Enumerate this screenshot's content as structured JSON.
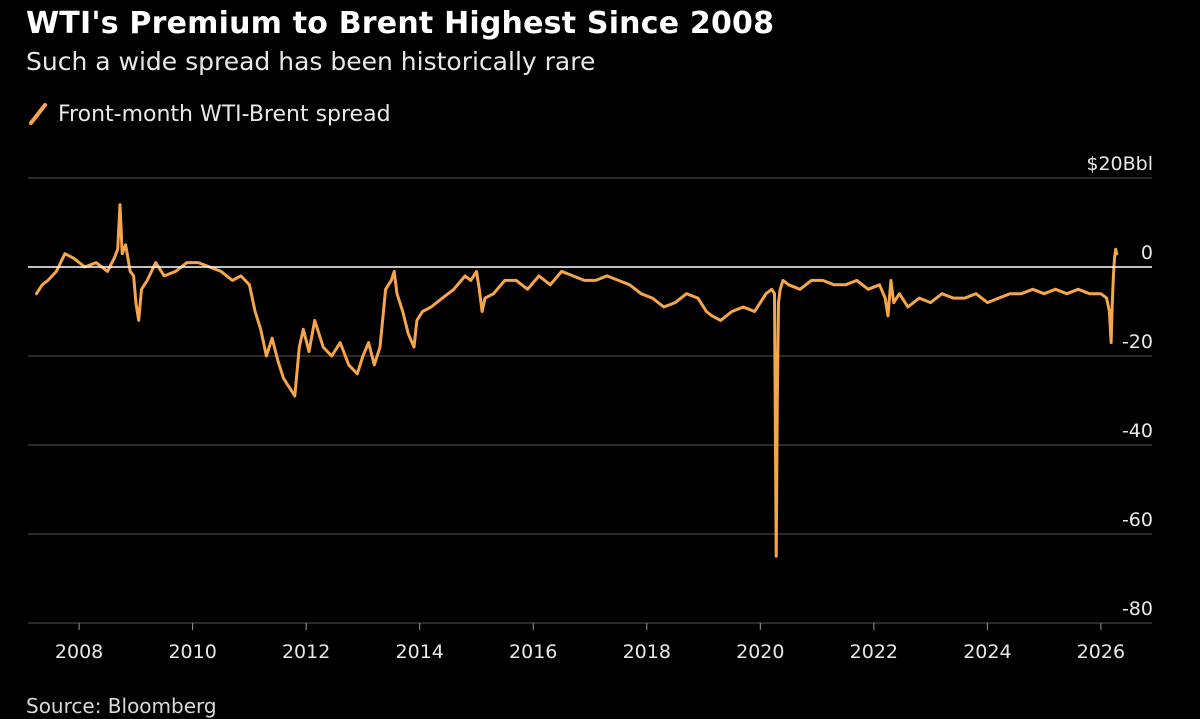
{
  "title": "WTI's Premium to Brent Highest Since 2008",
  "subtitle": "Such a wide spread has been historically rare",
  "source": "Source: Bloomberg",
  "colors": {
    "background": "#000000",
    "line": "#f5a54a",
    "grid": "#555555",
    "zero_line": "#ffffff",
    "text": "#e8e8e8"
  },
  "chart_data": {
    "type": "line",
    "title": "WTI's Premium to Brent Highest Since 2008",
    "subtitle": "Such a wide spread has been historically rare",
    "xlabel": "",
    "ylabel": "$/Bbl",
    "legend": {
      "entries": [
        "Front-month WTI-Brent spread"
      ],
      "placement": "top-left"
    },
    "xlim": [
      2007.1,
      2026.9
    ],
    "ylim": [
      -80,
      20
    ],
    "x_ticks": [
      2008,
      2010,
      2012,
      2014,
      2016,
      2018,
      2020,
      2022,
      2024,
      2026
    ],
    "x_tick_labels": [
      "2008",
      "2010",
      "2012",
      "2014",
      "2016",
      "2018",
      "2020",
      "2022",
      "2024",
      "2026"
    ],
    "y_ticks": [
      20,
      0,
      -20,
      -40,
      -60,
      -80
    ],
    "y_tick_labels": [
      "$20Bbl",
      "0",
      "-20",
      "-40",
      "-60",
      "-80"
    ],
    "grid": true,
    "series": [
      {
        "name": "Front-month WTI-Brent spread",
        "x": [
          2007.25,
          2007.35,
          2007.45,
          2007.6,
          2007.75,
          2007.9,
          2008.1,
          2008.3,
          2008.5,
          2008.62,
          2008.68,
          2008.72,
          2008.76,
          2008.82,
          2008.9,
          2008.96,
          2009.0,
          2009.05,
          2009.1,
          2009.2,
          2009.35,
          2009.5,
          2009.7,
          2009.9,
          2010.1,
          2010.3,
          2010.5,
          2010.7,
          2010.85,
          2011.0,
          2011.1,
          2011.2,
          2011.3,
          2011.4,
          2011.5,
          2011.6,
          2011.7,
          2011.8,
          2011.88,
          2011.95,
          2012.05,
          2012.15,
          2012.3,
          2012.45,
          2012.6,
          2012.75,
          2012.9,
          2013.0,
          2013.1,
          2013.2,
          2013.3,
          2013.4,
          2013.5,
          2013.55,
          2013.6,
          2013.7,
          2013.8,
          2013.9,
          2013.95,
          2014.05,
          2014.2,
          2014.4,
          2014.6,
          2014.8,
          2014.9,
          2015.0,
          2015.05,
          2015.1,
          2015.15,
          2015.3,
          2015.5,
          2015.7,
          2015.9,
          2016.1,
          2016.3,
          2016.5,
          2016.7,
          2016.9,
          2017.1,
          2017.3,
          2017.5,
          2017.7,
          2017.9,
          2018.1,
          2018.3,
          2018.5,
          2018.7,
          2018.9,
          2019.05,
          2019.15,
          2019.3,
          2019.5,
          2019.7,
          2019.9,
          2020.0,
          2020.1,
          2020.2,
          2020.25,
          2020.28,
          2020.3,
          2020.32,
          2020.35,
          2020.4,
          2020.5,
          2020.7,
          2020.9,
          2021.1,
          2021.3,
          2021.5,
          2021.7,
          2021.9,
          2022.1,
          2022.2,
          2022.25,
          2022.3,
          2022.35,
          2022.45,
          2022.6,
          2022.8,
          2023.0,
          2023.2,
          2023.4,
          2023.6,
          2023.8,
          2024.0,
          2024.2,
          2024.4,
          2024.6,
          2024.8,
          2025.0,
          2025.2,
          2025.4,
          2025.6,
          2025.8,
          2026.0,
          2026.1,
          2026.15,
          2026.18,
          2026.2,
          2026.22,
          2026.24,
          2026.26,
          2026.28
        ],
        "values": [
          -6,
          -4,
          -3,
          -1,
          3,
          2,
          0,
          1,
          -1,
          2,
          4,
          14,
          3,
          5,
          -1,
          -2,
          -8,
          -12,
          -5,
          -3,
          1,
          -2,
          -1,
          1,
          1,
          0,
          -1,
          -3,
          -2,
          -4,
          -10,
          -14,
          -20,
          -16,
          -21,
          -25,
          -27,
          -29,
          -18,
          -14,
          -19,
          -12,
          -18,
          -20,
          -17,
          -22,
          -24,
          -20,
          -17,
          -22,
          -18,
          -5,
          -3,
          -1,
          -6,
          -10,
          -15,
          -18,
          -12,
          -10,
          -9,
          -7,
          -5,
          -2,
          -3,
          -1,
          -5,
          -10,
          -7,
          -6,
          -3,
          -3,
          -5,
          -2,
          -4,
          -1,
          -2,
          -3,
          -3,
          -2,
          -3,
          -4,
          -6,
          -7,
          -9,
          -8,
          -6,
          -7,
          -10,
          -11,
          -12,
          -10,
          -9,
          -10,
          -8,
          -6,
          -5,
          -6,
          -65,
          -30,
          -8,
          -5,
          -3,
          -4,
          -5,
          -3,
          -3,
          -4,
          -4,
          -3,
          -5,
          -4,
          -7,
          -11,
          -3,
          -8,
          -6,
          -9,
          -7,
          -8,
          -6,
          -7,
          -7,
          -6,
          -8,
          -7,
          -6,
          -6,
          -5,
          -6,
          -5,
          -6,
          -5,
          -6,
          -6,
          -7,
          -10,
          -17,
          -8,
          -2,
          2,
          4,
          3
        ]
      }
    ]
  }
}
